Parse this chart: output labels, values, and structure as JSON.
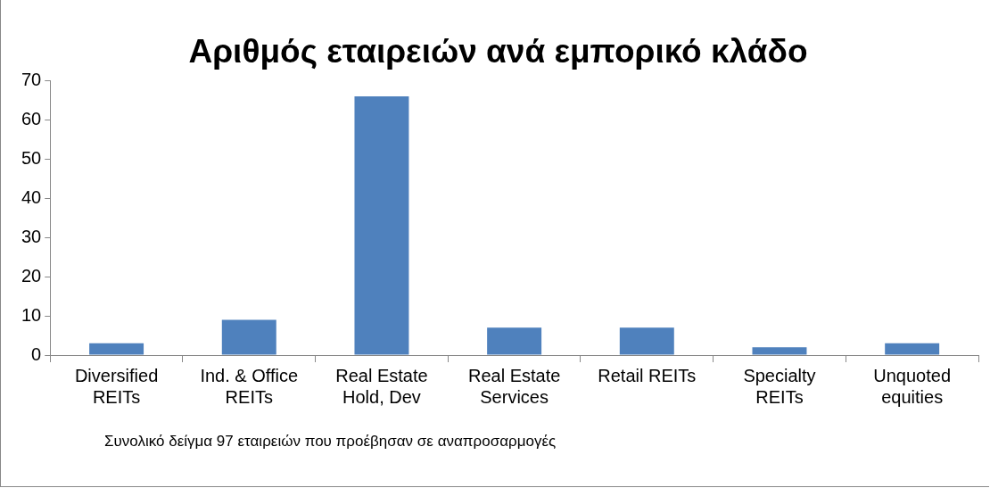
{
  "chart_data": {
    "type": "bar",
    "title": "Αριθμός εταιρειών ανά εμπορικό κλάδο",
    "categories": [
      "Diversified REITs",
      "Ind. & Office REITs",
      "Real Estate Hold, Dev",
      "Real Estate Services",
      "Retail REITs",
      "Specialty REITs",
      "Unquoted equities"
    ],
    "values": [
      3,
      9,
      66,
      7,
      7,
      2,
      3
    ],
    "color": "#4f81bd",
    "ylim": [
      0,
      70
    ],
    "yticks": [
      0,
      10,
      20,
      30,
      40,
      50,
      60,
      70
    ],
    "grid": false,
    "legend": false,
    "annotations": [
      "Συνολικό δείγμα 97 εταιρειών που προέβησαν σε αναπροσαρμογές"
    ]
  }
}
